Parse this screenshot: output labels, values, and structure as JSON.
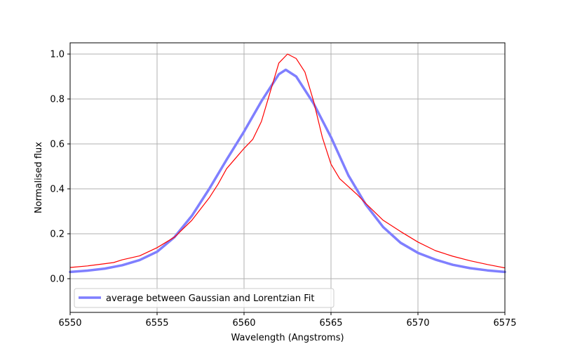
{
  "chart_data": {
    "type": "line",
    "title": "",
    "xlabel": "Wavelength (Angstroms)",
    "ylabel": "Normalised flux",
    "xlim": [
      6550,
      6575
    ],
    "ylim": [
      -0.15,
      1.05
    ],
    "x_ticks": [
      "6550",
      "6555",
      "6560",
      "6565",
      "6570",
      "6575"
    ],
    "y_ticks": [
      "0.0",
      "0.2",
      "0.4",
      "0.6",
      "0.8",
      "1.0"
    ],
    "x_tick_values": [
      6550,
      6555,
      6560,
      6565,
      6570,
      6575
    ],
    "y_tick_values": [
      0.0,
      0.2,
      0.4,
      0.6,
      0.8,
      1.0
    ],
    "grid": true,
    "legend_position": "lower-left",
    "series": [
      {
        "key": "observed",
        "color": "#ff0000",
        "in_legend": false,
        "points": [
          [
            6550.0,
            0.05
          ],
          [
            6551.0,
            0.057
          ],
          [
            6552.0,
            0.067
          ],
          [
            6552.5,
            0.072
          ],
          [
            6553.0,
            0.084
          ],
          [
            6554.0,
            0.102
          ],
          [
            6555.0,
            0.138
          ],
          [
            6556.0,
            0.185
          ],
          [
            6557.0,
            0.26
          ],
          [
            6558.0,
            0.36
          ],
          [
            6558.5,
            0.42
          ],
          [
            6559.0,
            0.49
          ],
          [
            6559.5,
            0.535
          ],
          [
            6560.0,
            0.58
          ],
          [
            6560.5,
            0.62
          ],
          [
            6561.0,
            0.7
          ],
          [
            6561.5,
            0.83
          ],
          [
            6562.0,
            0.96
          ],
          [
            6562.5,
            1.0
          ],
          [
            6563.0,
            0.98
          ],
          [
            6563.5,
            0.92
          ],
          [
            6564.0,
            0.79
          ],
          [
            6564.5,
            0.63
          ],
          [
            6565.0,
            0.51
          ],
          [
            6565.5,
            0.445
          ],
          [
            6566.0,
            0.41
          ],
          [
            6566.5,
            0.375
          ],
          [
            6567.0,
            0.335
          ],
          [
            6568.0,
            0.26
          ],
          [
            6569.0,
            0.21
          ],
          [
            6570.0,
            0.163
          ],
          [
            6571.0,
            0.125
          ],
          [
            6572.0,
            0.1
          ],
          [
            6573.0,
            0.08
          ],
          [
            6574.0,
            0.063
          ],
          [
            6575.0,
            0.048
          ]
        ]
      },
      {
        "key": "fit",
        "name": "average between Gaussian and Lorentzian Fit",
        "color": "#7f7fff",
        "in_legend": true,
        "points": [
          [
            6550.0,
            0.03
          ],
          [
            6551.0,
            0.036
          ],
          [
            6552.0,
            0.045
          ],
          [
            6553.0,
            0.06
          ],
          [
            6554.0,
            0.083
          ],
          [
            6555.0,
            0.12
          ],
          [
            6556.0,
            0.185
          ],
          [
            6557.0,
            0.28
          ],
          [
            6558.0,
            0.4
          ],
          [
            6559.0,
            0.53
          ],
          [
            6560.0,
            0.655
          ],
          [
            6561.0,
            0.79
          ],
          [
            6562.0,
            0.91
          ],
          [
            6562.4,
            0.93
          ],
          [
            6563.0,
            0.9
          ],
          [
            6564.0,
            0.78
          ],
          [
            6565.0,
            0.63
          ],
          [
            6566.0,
            0.46
          ],
          [
            6567.0,
            0.33
          ],
          [
            6568.0,
            0.23
          ],
          [
            6569.0,
            0.16
          ],
          [
            6570.0,
            0.115
          ],
          [
            6571.0,
            0.085
          ],
          [
            6572.0,
            0.062
          ],
          [
            6573.0,
            0.047
          ],
          [
            6574.0,
            0.037
          ],
          [
            6575.0,
            0.03
          ]
        ]
      }
    ]
  }
}
